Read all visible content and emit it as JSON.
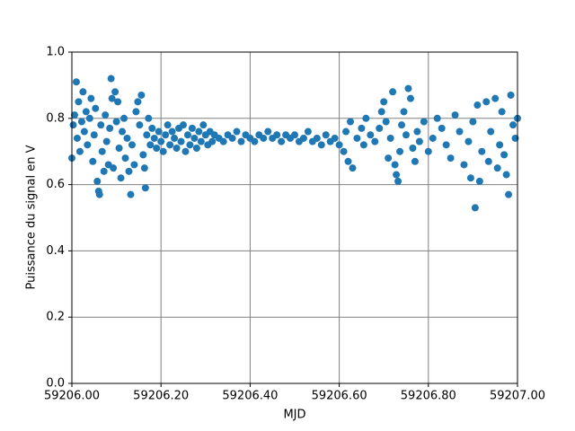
{
  "chart_data": {
    "type": "scatter",
    "x_label": "MJD",
    "y_label": "Puissance du signal en V",
    "color": "#1f77b4",
    "grid": true,
    "xlim": [
      59206,
      59207
    ],
    "xticks": [
      {
        "value": 59206.0,
        "label": "59206.00"
      },
      {
        "value": 59206.2,
        "label": "59206.20"
      },
      {
        "value": 59206.4,
        "label": "59206.40"
      },
      {
        "value": 59206.6,
        "label": "59206.60"
      },
      {
        "value": 59206.8,
        "label": "59206.80"
      },
      {
        "value": 59207.0,
        "label": "59207.00"
      }
    ],
    "ylim": [
      0,
      1
    ],
    "yticks": [
      {
        "value": 0,
        "label": "0.0"
      },
      0.2,
      0.4,
      0.6,
      0.8,
      {
        "value": 1,
        "label": "1.0"
      }
    ],
    "x": [
      59206.0,
      59206.003,
      59206.006,
      59206.01,
      59206.012,
      59206.015,
      59206.018,
      59206.022,
      59206.025,
      59206.028,
      59206.032,
      59206.035,
      59206.04,
      59206.043,
      59206.047,
      59206.05,
      59206.053,
      59206.057,
      59206.06,
      59206.062,
      59206.065,
      59206.068,
      59206.072,
      59206.075,
      59206.078,
      59206.082,
      59206.085,
      59206.088,
      59206.09,
      59206.093,
      59206.097,
      59206.1,
      59206.103,
      59206.106,
      59206.11,
      59206.113,
      59206.117,
      59206.12,
      59206.124,
      59206.128,
      59206.132,
      59206.135,
      59206.14,
      59206.144,
      59206.148,
      59206.152,
      59206.156,
      59206.16,
      59206.163,
      59206.165,
      59206.168,
      59206.172,
      59206.176,
      59206.18,
      59206.185,
      59206.19,
      59206.195,
      59206.2,
      59206.205,
      59206.21,
      59206.215,
      59206.22,
      59206.225,
      59206.23,
      59206.235,
      59206.24,
      59206.245,
      59206.25,
      59206.255,
      59206.26,
      59206.265,
      59206.27,
      59206.275,
      59206.28,
      59206.285,
      59206.29,
      59206.295,
      59206.3,
      59206.305,
      59206.31,
      59206.315,
      59206.32,
      59206.33,
      59206.34,
      59206.35,
      59206.36,
      59206.37,
      59206.38,
      59206.39,
      59206.4,
      59206.41,
      59206.42,
      59206.43,
      59206.44,
      59206.45,
      59206.46,
      59206.47,
      59206.48,
      59206.49,
      59206.5,
      59206.51,
      59206.52,
      59206.53,
      59206.54,
      59206.55,
      59206.56,
      59206.57,
      59206.58,
      59206.59,
      59206.6,
      59206.61,
      59206.615,
      59206.62,
      59206.625,
      59206.63,
      59206.64,
      59206.65,
      59206.655,
      59206.66,
      59206.67,
      59206.68,
      59206.69,
      59206.695,
      59206.7,
      59206.705,
      59206.71,
      59206.715,
      59206.72,
      59206.725,
      59206.728,
      59206.732,
      59206.736,
      59206.74,
      59206.745,
      59206.75,
      59206.755,
      59206.76,
      59206.765,
      59206.77,
      59206.775,
      59206.78,
      59206.79,
      59206.8,
      59206.81,
      59206.82,
      59206.83,
      59206.84,
      59206.85,
      59206.86,
      59206.87,
      59206.88,
      59206.89,
      59206.895,
      59206.9,
      59206.905,
      59206.91,
      59206.915,
      59206.92,
      59206.93,
      59206.935,
      59206.94,
      59206.95,
      59206.955,
      59206.96,
      59206.965,
      59206.97,
      59206.975,
      59206.98,
      59206.985,
      59206.99,
      59206.995,
      59207.0
    ],
    "values": [
      0.68,
      0.78,
      0.81,
      0.91,
      0.74,
      0.85,
      0.7,
      0.79,
      0.88,
      0.76,
      0.82,
      0.72,
      0.8,
      0.86,
      0.67,
      0.75,
      0.83,
      0.61,
      0.58,
      0.57,
      0.78,
      0.7,
      0.64,
      0.81,
      0.73,
      0.66,
      0.77,
      0.92,
      0.86,
      0.65,
      0.88,
      0.79,
      0.85,
      0.71,
      0.62,
      0.76,
      0.8,
      0.68,
      0.74,
      0.64,
      0.57,
      0.72,
      0.66,
      0.82,
      0.85,
      0.78,
      0.87,
      0.69,
      0.65,
      0.59,
      0.75,
      0.8,
      0.72,
      0.77,
      0.74,
      0.71,
      0.76,
      0.73,
      0.7,
      0.75,
      0.78,
      0.72,
      0.76,
      0.74,
      0.71,
      0.77,
      0.73,
      0.78,
      0.7,
      0.75,
      0.72,
      0.77,
      0.74,
      0.71,
      0.76,
      0.73,
      0.78,
      0.75,
      0.72,
      0.76,
      0.73,
      0.75,
      0.74,
      0.73,
      0.75,
      0.74,
      0.76,
      0.73,
      0.75,
      0.74,
      0.73,
      0.75,
      0.74,
      0.76,
      0.74,
      0.75,
      0.73,
      0.75,
      0.74,
      0.75,
      0.73,
      0.74,
      0.76,
      0.73,
      0.74,
      0.72,
      0.75,
      0.73,
      0.74,
      0.72,
      0.7,
      0.76,
      0.67,
      0.79,
      0.65,
      0.74,
      0.77,
      0.72,
      0.8,
      0.75,
      0.73,
      0.77,
      0.82,
      0.85,
      0.79,
      0.68,
      0.74,
      0.88,
      0.66,
      0.63,
      0.61,
      0.7,
      0.78,
      0.82,
      0.75,
      0.89,
      0.86,
      0.71,
      0.67,
      0.76,
      0.73,
      0.79,
      0.7,
      0.74,
      0.8,
      0.77,
      0.72,
      0.68,
      0.81,
      0.76,
      0.66,
      0.73,
      0.62,
      0.79,
      0.53,
      0.84,
      0.61,
      0.7,
      0.85,
      0.67,
      0.76,
      0.86,
      0.65,
      0.72,
      0.82,
      0.69,
      0.63,
      0.57,
      0.87,
      0.78,
      0.74,
      0.8
    ]
  }
}
